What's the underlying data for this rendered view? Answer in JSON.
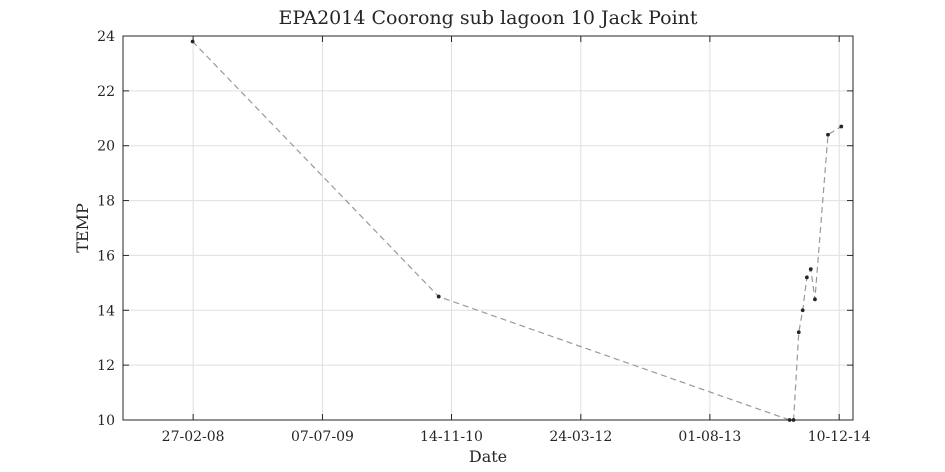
{
  "chart_data": {
    "type": "line",
    "title": "EPA2014 Coorong sub lagoon 10 Jack Point",
    "xlabel": "Date",
    "ylabel": "TEMP",
    "x_type": "date",
    "x_tick_format": "DD-MM-YY",
    "xlim": [
      "2007-06-03",
      "2015-02-01"
    ],
    "ylim": [
      10,
      24
    ],
    "x_ticks": [
      "27-02-08",
      "07-07-09",
      "14-11-10",
      "24-03-12",
      "01-08-13",
      "10-12-14"
    ],
    "y_ticks": [
      "10",
      "12",
      "14",
      "16",
      "18",
      "20",
      "22",
      "24"
    ],
    "grid": true,
    "series": [
      {
        "points": [
          {
            "x": "2008-02-25",
            "y": 23.8
          },
          {
            "x": "2010-09-26",
            "y": 14.5
          },
          {
            "x": "2014-06-03",
            "y": 10.0
          },
          {
            "x": "2014-06-18",
            "y": 10.0
          },
          {
            "x": "2014-07-08",
            "y": 13.2
          },
          {
            "x": "2014-07-23",
            "y": 14.0
          },
          {
            "x": "2014-08-08",
            "y": 15.2
          },
          {
            "x": "2014-08-23",
            "y": 15.5
          },
          {
            "x": "2014-09-08",
            "y": 14.4
          },
          {
            "x": "2014-10-28",
            "y": 20.4
          },
          {
            "x": "2014-12-18",
            "y": 20.7
          }
        ]
      }
    ],
    "colors": {
      "line": "#999999",
      "marker": "#262626",
      "grid": "#dfdfdf",
      "axis": "#262626"
    }
  }
}
